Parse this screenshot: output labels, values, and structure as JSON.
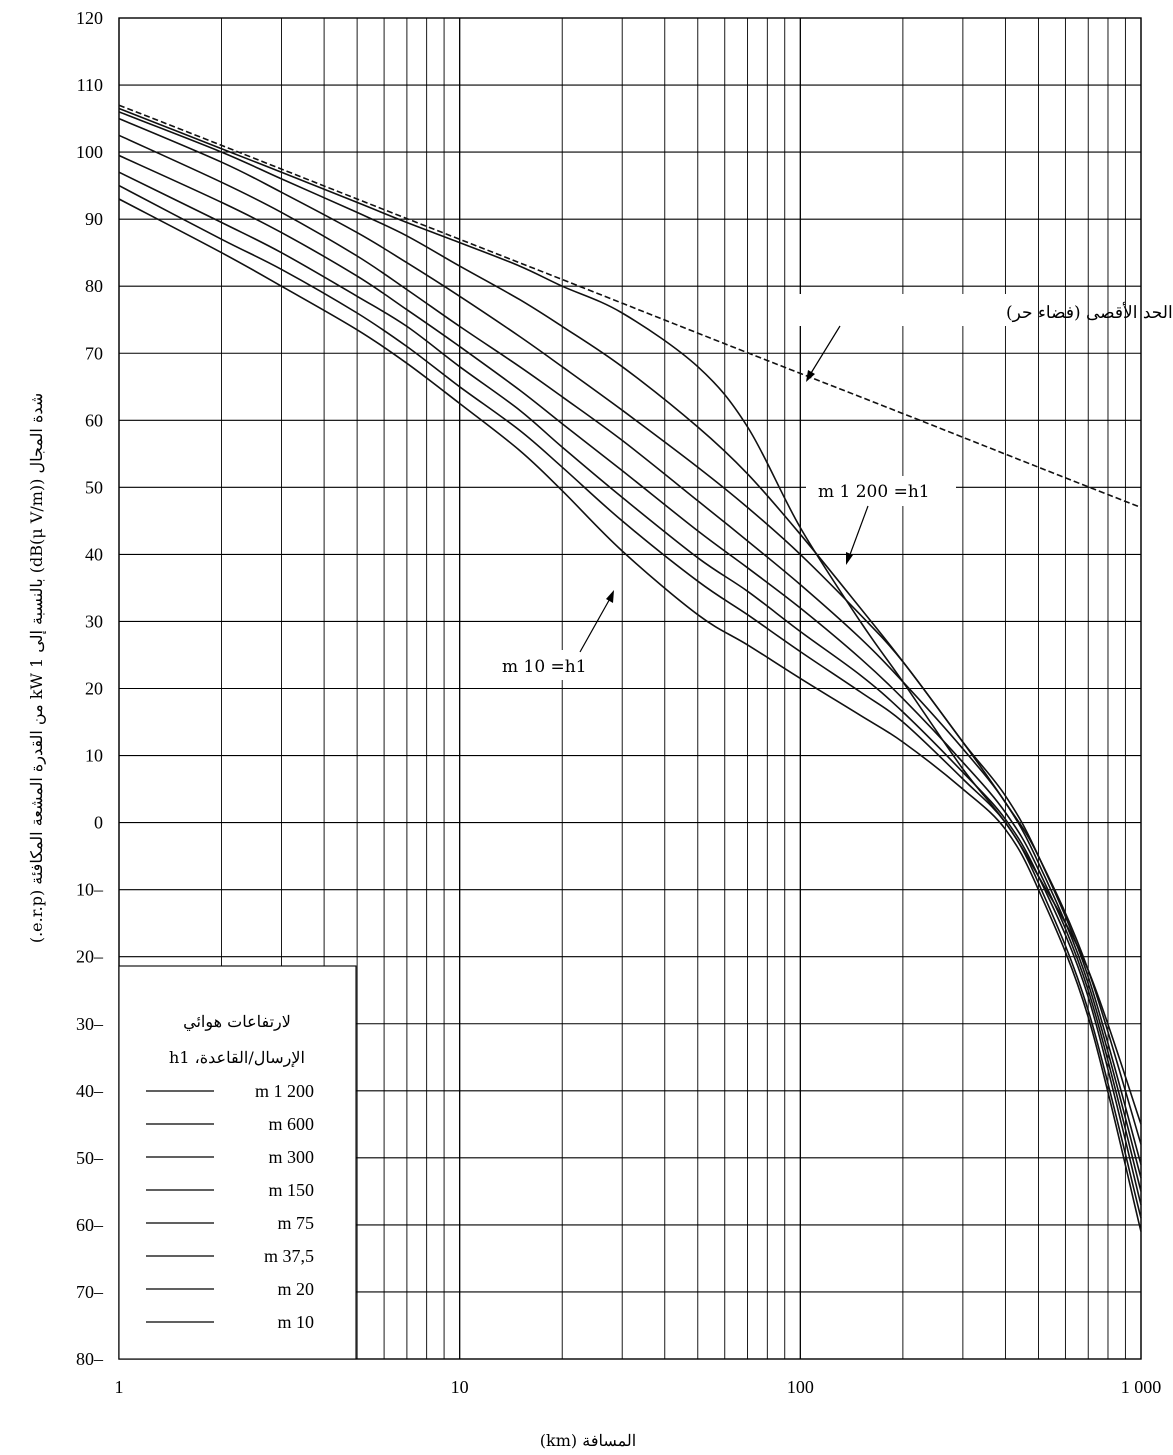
{
  "chart_data": {
    "type": "line",
    "x_scale": "log",
    "xlim": [
      1,
      1000
    ],
    "ylim": [
      -80,
      120
    ],
    "y_major_step": 10,
    "grid": true,
    "xlabel": "المسافة (km)",
    "ylabel": "شدة المجال (dB(μ V/m)) بالنسبة إلى kW 1 من القدرة المشعة المكافئة (e.r.p.)",
    "x_tick_labels": [
      "1",
      "10",
      "100",
      "1 000"
    ],
    "y_tick_labels": [
      "120",
      "110",
      "100",
      "90",
      "80",
      "70",
      "60",
      "50",
      "40",
      "30",
      "20",
      "10",
      "0",
      "10–",
      "20–",
      "30–",
      "40–",
      "50–",
      "60–",
      "70–",
      "80–"
    ],
    "legend": {
      "placement": "bottom-left",
      "title_lines": [
        "لارتفاعات هوائي",
        "الإرسال/القاعدة، h1"
      ],
      "entries": [
        "m 1 200",
        "m 600",
        "m 300",
        "m 150",
        "m 75",
        "m 37,5",
        "m 20",
        "m 10"
      ]
    },
    "annotations": [
      {
        "text": "الحد الأقصى (فضاء حر)"
      },
      {
        "text": "m 1 200 =h1"
      },
      {
        "text": "m 10 =h1"
      }
    ],
    "free_space": {
      "name": "الحد الأقصى (فضاء حر)",
      "x": [
        1,
        2,
        5,
        10,
        20,
        50,
        100,
        200,
        500,
        1000
      ],
      "y": [
        107,
        101,
        93,
        87,
        81,
        73,
        67,
        61,
        53,
        47
      ]
    },
    "x": [
      1,
      2,
      3,
      5,
      7,
      10,
      15,
      20,
      30,
      50,
      70,
      100,
      150,
      200,
      300,
      400,
      500,
      700,
      1000
    ],
    "series": [
      {
        "name": "m 1 200",
        "values": [
          106.5,
          100.5,
          97,
          92.5,
          89.5,
          86.5,
          83,
          80,
          76,
          68,
          59,
          44,
          30,
          21,
          8,
          0,
          -8,
          -22,
          -45
        ]
      },
      {
        "name": "m 600",
        "values": [
          106,
          100,
          96,
          91,
          87.5,
          83,
          78,
          74,
          68,
          59,
          52,
          43,
          32,
          24,
          12,
          3,
          -5,
          -22,
          -48
        ]
      },
      {
        "name": "m 300",
        "values": [
          105,
          98.5,
          94,
          88,
          83.5,
          78.5,
          72.5,
          68,
          61.5,
          53,
          47,
          40,
          31,
          24,
          12,
          4,
          -5,
          -23,
          -51
        ]
      },
      {
        "name": "m 150",
        "values": [
          102.5,
          95.5,
          91,
          84.5,
          79.5,
          74,
          68,
          63.5,
          57,
          48,
          42,
          35.5,
          27.5,
          21,
          11,
          3,
          -6,
          -24,
          -53
        ]
      },
      {
        "name": "m 75",
        "values": [
          99.5,
          92.5,
          88,
          81.5,
          76.5,
          71,
          64.5,
          59.5,
          52.5,
          43.5,
          38,
          32,
          24.5,
          18.5,
          9,
          1.5,
          -7,
          -25,
          -55
        ]
      },
      {
        "name": "m 37,5",
        "values": [
          97,
          89.5,
          85,
          78.5,
          74,
          68,
          61.5,
          56,
          48.5,
          39.5,
          34.5,
          28.5,
          22,
          16.5,
          7.5,
          0.5,
          -8,
          -26,
          -57
        ]
      },
      {
        "name": "m 20",
        "values": [
          95,
          87,
          82.5,
          76,
          71,
          65,
          58.5,
          53,
          45,
          36,
          31,
          25.5,
          19.5,
          15,
          6.5,
          0,
          -9,
          -28,
          -59
        ]
      },
      {
        "name": "m 10",
        "values": [
          93,
          85,
          80,
          73.5,
          68.5,
          62.5,
          55.5,
          49.5,
          40.5,
          31,
          26.5,
          21.5,
          16,
          12,
          5,
          -1,
          -10,
          -29,
          -61
        ]
      }
    ]
  }
}
